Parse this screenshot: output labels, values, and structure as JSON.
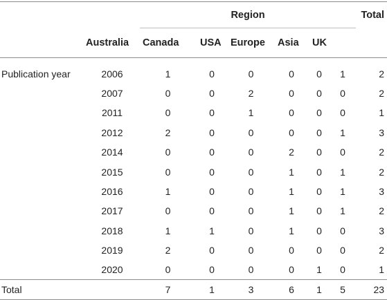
{
  "header": {
    "region_label": "Region",
    "total_label": "Total",
    "columns": [
      "Australia",
      "Canada",
      "USA",
      "Europe",
      "Asia",
      "UK"
    ]
  },
  "row_group_label": "Publication year",
  "rows": [
    {
      "year": "2006",
      "values": [
        "1",
        "0",
        "0",
        "0",
        "0",
        "1"
      ],
      "total": "2"
    },
    {
      "year": "2007",
      "values": [
        "0",
        "0",
        "2",
        "0",
        "0",
        "0"
      ],
      "total": "2"
    },
    {
      "year": "2011",
      "values": [
        "0",
        "0",
        "1",
        "0",
        "0",
        "0"
      ],
      "total": "1"
    },
    {
      "year": "2012",
      "values": [
        "2",
        "0",
        "0",
        "0",
        "0",
        "1"
      ],
      "total": "3"
    },
    {
      "year": "2014",
      "values": [
        "0",
        "0",
        "0",
        "2",
        "0",
        "0"
      ],
      "total": "2"
    },
    {
      "year": "2015",
      "values": [
        "0",
        "0",
        "0",
        "1",
        "0",
        "1"
      ],
      "total": "2"
    },
    {
      "year": "2016",
      "values": [
        "1",
        "0",
        "0",
        "1",
        "0",
        "1"
      ],
      "total": "3"
    },
    {
      "year": "2017",
      "values": [
        "0",
        "0",
        "0",
        "1",
        "0",
        "1"
      ],
      "total": "2"
    },
    {
      "year": "2018",
      "values": [
        "1",
        "1",
        "0",
        "1",
        "0",
        "0"
      ],
      "total": "3"
    },
    {
      "year": "2019",
      "values": [
        "2",
        "0",
        "0",
        "0",
        "0",
        "0"
      ],
      "total": "2"
    },
    {
      "year": "2020",
      "values": [
        "0",
        "0",
        "0",
        "0",
        "1",
        "0"
      ],
      "total": "1"
    }
  ],
  "total_row": {
    "label": "Total",
    "values": [
      "7",
      "1",
      "3",
      "6",
      "1",
      "5"
    ],
    "total": "23"
  }
}
